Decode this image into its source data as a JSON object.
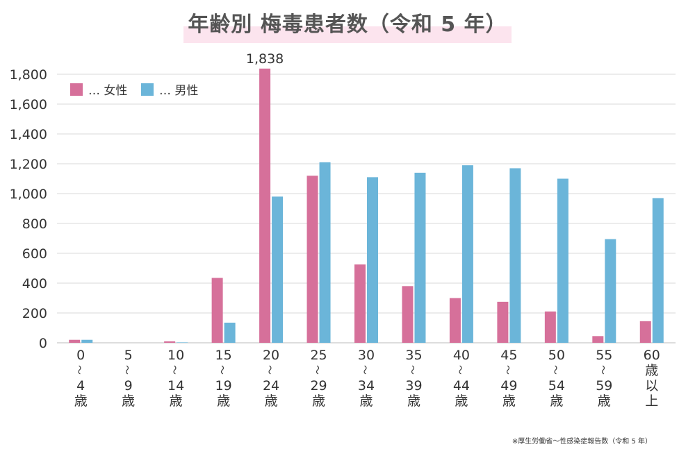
{
  "chart_data": {
    "type": "bar",
    "title": "年齢別 梅毒患者数（令和 5 年）",
    "categories": [
      [
        "0",
        "〜",
        "4",
        "歳"
      ],
      [
        "5",
        "〜",
        "9",
        "歳"
      ],
      [
        "10",
        "〜",
        "14",
        "歳"
      ],
      [
        "15",
        "〜",
        "19",
        "歳"
      ],
      [
        "20",
        "〜",
        "24",
        "歳"
      ],
      [
        "25",
        "〜",
        "29",
        "歳"
      ],
      [
        "30",
        "〜",
        "34",
        "歳"
      ],
      [
        "35",
        "〜",
        "39",
        "歳"
      ],
      [
        "40",
        "〜",
        "44",
        "歳"
      ],
      [
        "45",
        "〜",
        "49",
        "歳"
      ],
      [
        "50",
        "〜",
        "54",
        "歳"
      ],
      [
        "55",
        "〜",
        "59",
        "歳"
      ],
      [
        "60",
        "歳",
        "以",
        "上"
      ]
    ],
    "series": [
      {
        "name": "… 女性",
        "color": "#d6709a",
        "values": [
          20,
          0,
          10,
          435,
          1838,
          1120,
          525,
          380,
          300,
          275,
          210,
          45,
          145
        ]
      },
      {
        "name": "… 男性",
        "color": "#6bb5d9",
        "values": [
          20,
          0,
          3,
          135,
          980,
          1210,
          1110,
          1140,
          1190,
          1170,
          1100,
          695,
          970
        ]
      }
    ],
    "ylim": [
      0,
      1800
    ],
    "yticks": [
      "0",
      "200",
      "400",
      "600",
      "800",
      "1,000",
      "1,200",
      "1,400",
      "1,600",
      "1,800"
    ],
    "annotations": [
      {
        "text": "1,838",
        "series": 0,
        "category": 4
      }
    ],
    "grid": true,
    "legend_position": "top-left",
    "xlabel": "",
    "ylabel": "",
    "title_highlight_color": "#fce4ee"
  },
  "source": "※厚生労働省〜性感染症報告数（令和 5 年）"
}
